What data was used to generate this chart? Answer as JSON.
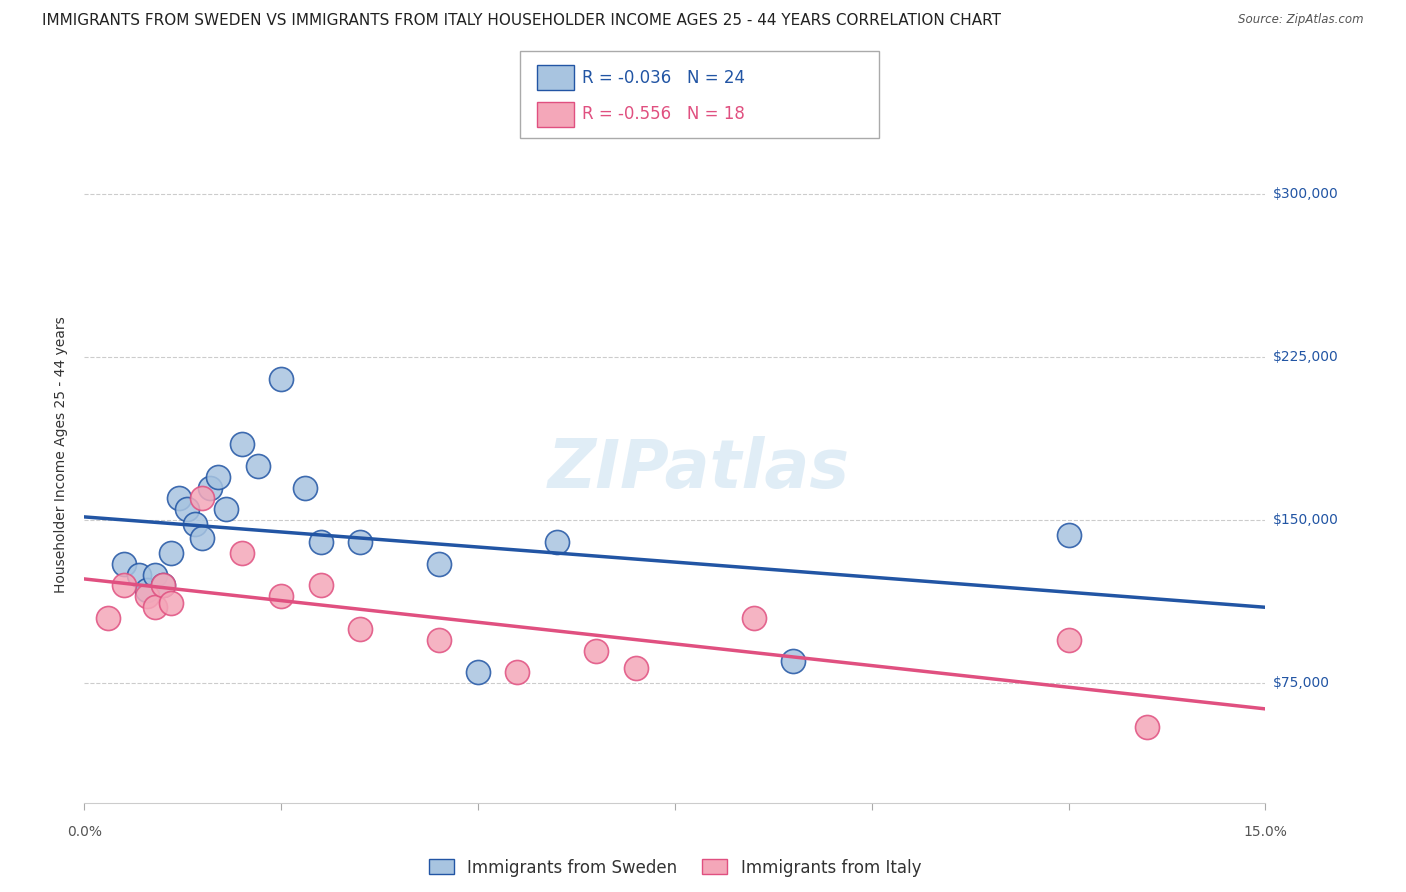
{
  "title": "IMMIGRANTS FROM SWEDEN VS IMMIGRANTS FROM ITALY HOUSEHOLDER INCOME AGES 25 - 44 YEARS CORRELATION CHART",
  "source": "Source: ZipAtlas.com",
  "ylabel": "Householder Income Ages 25 - 44 years",
  "ytick_labels": [
    "$75,000",
    "$150,000",
    "$225,000",
    "$300,000"
  ],
  "ytick_values": [
    75000,
    150000,
    225000,
    300000
  ],
  "xlim": [
    0.0,
    15.0
  ],
  "ylim": [
    20000,
    340000
  ],
  "legend_label1": "Immigrants from Sweden",
  "legend_label2": "Immigrants from Italy",
  "R1": -0.036,
  "N1": 24,
  "R2": -0.556,
  "N2": 18,
  "color_sweden": "#a8c4e0",
  "color_italy": "#f4a7b9",
  "line_color_sweden": "#2255a4",
  "line_color_italy": "#e05080",
  "watermark": "ZIPatlas",
  "sweden_x": [
    0.5,
    0.7,
    0.8,
    0.9,
    1.0,
    1.1,
    1.2,
    1.3,
    1.4,
    1.5,
    1.6,
    1.7,
    1.8,
    2.0,
    2.2,
    2.5,
    2.8,
    3.0,
    3.5,
    4.5,
    5.0,
    6.0,
    9.0,
    12.5
  ],
  "sweden_y": [
    130000,
    125000,
    118000,
    125000,
    120000,
    135000,
    160000,
    155000,
    148000,
    142000,
    165000,
    170000,
    155000,
    185000,
    175000,
    215000,
    165000,
    140000,
    140000,
    130000,
    80000,
    140000,
    85000,
    143000
  ],
  "italy_x": [
    0.3,
    0.5,
    0.8,
    0.9,
    1.0,
    1.1,
    1.5,
    2.0,
    2.5,
    3.0,
    3.5,
    4.5,
    5.5,
    6.5,
    7.0,
    8.5,
    12.5,
    13.5
  ],
  "italy_y": [
    105000,
    120000,
    115000,
    110000,
    120000,
    112000,
    160000,
    135000,
    115000,
    120000,
    100000,
    95000,
    80000,
    90000,
    82000,
    105000,
    95000,
    55000
  ],
  "title_fontsize": 11,
  "axis_label_fontsize": 10,
  "tick_fontsize": 10,
  "legend_fontsize": 11
}
